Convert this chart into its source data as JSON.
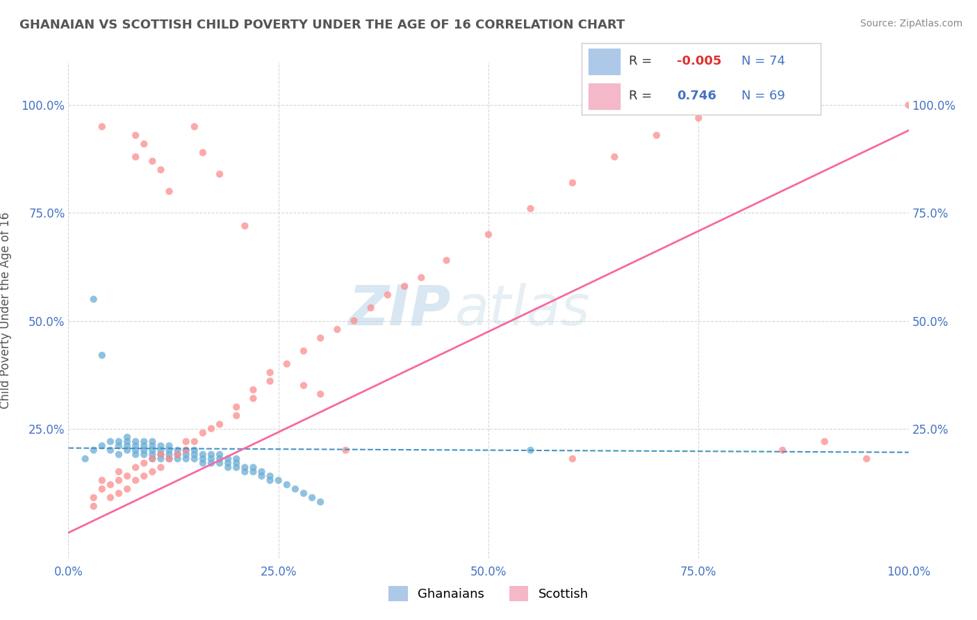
{
  "title": "GHANAIAN VS SCOTTISH CHILD POVERTY UNDER THE AGE OF 16 CORRELATION CHART",
  "source": "Source: ZipAtlas.com",
  "ylabel": "Child Poverty Under the Age of 16",
  "watermark_zip": "ZIP",
  "watermark_atlas": "atlas",
  "legend_blue_R": "-0.005",
  "legend_blue_N": "74",
  "legend_pink_R": "0.746",
  "legend_pink_N": "69",
  "xlim": [
    0.0,
    1.0
  ],
  "ylim": [
    -0.05,
    1.1
  ],
  "xtick_labels": [
    "0.0%",
    "25.0%",
    "50.0%",
    "75.0%",
    "100.0%"
  ],
  "xtick_vals": [
    0.0,
    0.25,
    0.5,
    0.75,
    1.0
  ],
  "ytick_labels": [
    "25.0%",
    "50.0%",
    "75.0%",
    "100.0%"
  ],
  "ytick_vals": [
    0.25,
    0.5,
    0.75,
    1.0
  ],
  "bg_color": "#ffffff",
  "scatter_blue_color": "#6baed6",
  "scatter_pink_color": "#fc8d8d",
  "line_blue_color": "#4393c3",
  "line_pink_color": "#f768a1",
  "grid_color": "#cccccc",
  "blue_points_x": [
    0.02,
    0.03,
    0.04,
    0.05,
    0.05,
    0.06,
    0.06,
    0.06,
    0.07,
    0.07,
    0.07,
    0.07,
    0.08,
    0.08,
    0.08,
    0.08,
    0.09,
    0.09,
    0.09,
    0.09,
    0.1,
    0.1,
    0.1,
    0.1,
    0.1,
    0.11,
    0.11,
    0.11,
    0.11,
    0.12,
    0.12,
    0.12,
    0.12,
    0.13,
    0.13,
    0.13,
    0.14,
    0.14,
    0.14,
    0.15,
    0.15,
    0.15,
    0.16,
    0.16,
    0.16,
    0.17,
    0.17,
    0.17,
    0.18,
    0.18,
    0.18,
    0.19,
    0.19,
    0.19,
    0.2,
    0.2,
    0.2,
    0.21,
    0.21,
    0.22,
    0.22,
    0.23,
    0.23,
    0.24,
    0.24,
    0.25,
    0.26,
    0.27,
    0.28,
    0.29,
    0.3,
    0.03,
    0.04,
    0.55
  ],
  "blue_points_y": [
    0.18,
    0.2,
    0.21,
    0.2,
    0.22,
    0.19,
    0.21,
    0.22,
    0.2,
    0.21,
    0.22,
    0.23,
    0.19,
    0.2,
    0.21,
    0.22,
    0.19,
    0.2,
    0.21,
    0.22,
    0.18,
    0.19,
    0.2,
    0.21,
    0.22,
    0.18,
    0.19,
    0.2,
    0.21,
    0.18,
    0.19,
    0.2,
    0.21,
    0.18,
    0.19,
    0.2,
    0.18,
    0.19,
    0.2,
    0.18,
    0.19,
    0.2,
    0.17,
    0.18,
    0.19,
    0.17,
    0.18,
    0.19,
    0.17,
    0.18,
    0.19,
    0.16,
    0.17,
    0.18,
    0.16,
    0.17,
    0.18,
    0.15,
    0.16,
    0.15,
    0.16,
    0.14,
    0.15,
    0.13,
    0.14,
    0.13,
    0.12,
    0.11,
    0.1,
    0.09,
    0.08,
    0.55,
    0.42,
    0.2
  ],
  "pink_points_x": [
    0.03,
    0.03,
    0.04,
    0.04,
    0.05,
    0.05,
    0.06,
    0.06,
    0.06,
    0.07,
    0.07,
    0.08,
    0.08,
    0.09,
    0.09,
    0.1,
    0.1,
    0.11,
    0.11,
    0.12,
    0.13,
    0.14,
    0.14,
    0.15,
    0.16,
    0.17,
    0.18,
    0.2,
    0.2,
    0.22,
    0.22,
    0.24,
    0.24,
    0.26,
    0.28,
    0.3,
    0.32,
    0.34,
    0.36,
    0.38,
    0.4,
    0.42,
    0.45,
    0.5,
    0.55,
    0.6,
    0.65,
    0.7,
    0.75,
    0.8,
    0.85,
    0.9,
    0.95,
    1.0,
    0.28,
    0.3,
    0.16,
    0.18,
    0.21,
    0.08,
    0.08,
    0.09,
    0.1,
    0.11,
    0.12,
    0.15,
    0.33,
    0.6,
    0.04
  ],
  "pink_points_y": [
    0.07,
    0.09,
    0.11,
    0.13,
    0.09,
    0.12,
    0.1,
    0.13,
    0.15,
    0.11,
    0.14,
    0.13,
    0.16,
    0.14,
    0.17,
    0.15,
    0.18,
    0.16,
    0.19,
    0.18,
    0.19,
    0.2,
    0.22,
    0.22,
    0.24,
    0.25,
    0.26,
    0.28,
    0.3,
    0.32,
    0.34,
    0.36,
    0.38,
    0.4,
    0.43,
    0.46,
    0.48,
    0.5,
    0.53,
    0.56,
    0.58,
    0.6,
    0.64,
    0.7,
    0.76,
    0.82,
    0.88,
    0.93,
    0.97,
    1.0,
    0.2,
    0.22,
    0.18,
    1.0,
    0.35,
    0.33,
    0.89,
    0.84,
    0.72,
    0.88,
    0.93,
    0.91,
    0.87,
    0.85,
    0.8,
    0.95,
    0.2,
    0.18,
    0.95
  ],
  "blue_line_x": [
    0.0,
    1.0
  ],
  "blue_line_y": [
    0.205,
    0.195
  ],
  "pink_line_x": [
    -0.02,
    1.02
  ],
  "pink_line_y": [
    -0.01,
    0.96
  ],
  "legend_blue_color": "#aec8e8",
  "legend_pink_color": "#f4b8c8",
  "tick_color": "#4472c4",
  "title_color": "#555555",
  "source_color": "#888888",
  "ylabel_color": "#555555"
}
